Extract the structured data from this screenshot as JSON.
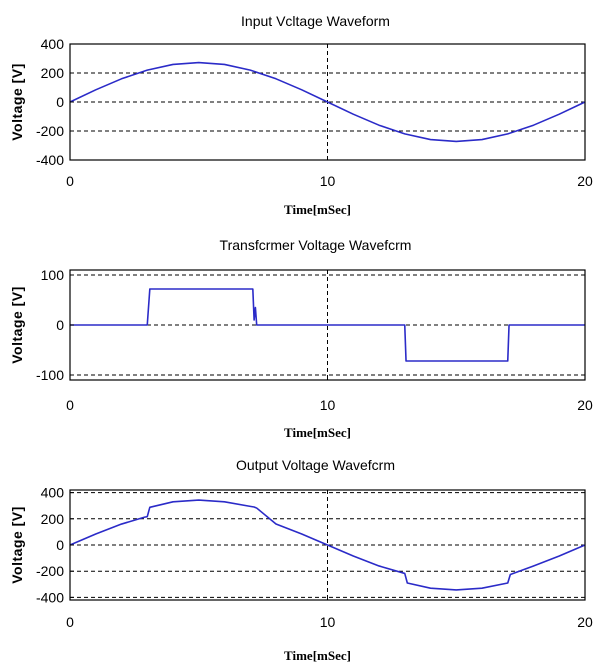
{
  "colors": {
    "line": "#2b2bc8",
    "axes": "#000000",
    "grid": "#000000",
    "background": "#ffffff"
  },
  "chart_data": [
    {
      "type": "line",
      "title": "Input Vcltage Waveform",
      "xlabel": "Time[mSec]",
      "ylabel": "Voltage [V]",
      "xlim": [
        0,
        20
      ],
      "ylim": [
        -400,
        400
      ],
      "xticks": [
        0,
        10,
        20
      ],
      "xtick_labels": [
        "0",
        "10",
        "20"
      ],
      "yticks": [
        400,
        200,
        0,
        -200,
        -400
      ],
      "ytick_labels": [
        "400",
        "200",
        "0",
        "-200",
        "-400"
      ],
      "grid": true,
      "series": [
        {
          "x": [
            0,
            1,
            2,
            3,
            4,
            5,
            6,
            7,
            8,
            9,
            10,
            11,
            12,
            13,
            14,
            15,
            16,
            17,
            18,
            19,
            20
          ],
          "y": [
            0,
            84,
            160,
            220,
            259,
            272,
            259,
            220,
            160,
            84,
            0,
            -84,
            -160,
            -220,
            -259,
            -272,
            -259,
            -220,
            -160,
            -84,
            0
          ]
        }
      ]
    },
    {
      "type": "line",
      "title": "Transfcrmer Voltage Wavefcrm",
      "xlabel": "Time[mSec]",
      "ylabel": "Voltage [V]",
      "xlim": [
        0,
        20
      ],
      "ylim": [
        -110,
        110
      ],
      "xticks": [
        0,
        10,
        20
      ],
      "xtick_labels": [
        "0",
        "10",
        "20"
      ],
      "yticks": [
        100,
        0,
        -100
      ],
      "ytick_labels": [
        "100",
        "0",
        "-100"
      ],
      "grid": true,
      "series": [
        {
          "x": [
            0,
            2.9,
            3.0,
            3.1,
            7.1,
            7.15,
            7.2,
            7.25,
            13.0,
            13.05,
            17.0,
            17.05,
            20
          ],
          "y": [
            0,
            0,
            0,
            72,
            72,
            10,
            35,
            0,
            0,
            -72,
            -72,
            0,
            0
          ]
        }
      ]
    },
    {
      "type": "line",
      "title": "Output Voltage Wavefcrm",
      "xlabel": "Time[mSec]",
      "ylabel": "Voltage [V]",
      "xlim": [
        0,
        20
      ],
      "ylim": [
        -420,
        420
      ],
      "xticks": [
        0,
        10,
        20
      ],
      "xtick_labels": [
        "0",
        "10",
        "20"
      ],
      "yticks": [
        400,
        200,
        0,
        -200,
        -400
      ],
      "ytick_labels": [
        "400",
        "200",
        "0",
        "-200",
        "-400"
      ],
      "grid": true,
      "series": [
        {
          "x": [
            0,
            1,
            2,
            2.9,
            3.0,
            3.1,
            4,
            5,
            6,
            7,
            7.15,
            7.25,
            8,
            9,
            10,
            11,
            12,
            13,
            13.1,
            14,
            15,
            16,
            17,
            17.1,
            18,
            19,
            20
          ],
          "y": [
            0,
            84,
            160,
            213,
            216,
            288,
            330,
            343,
            330,
            295,
            290,
            282,
            160,
            84,
            0,
            -84,
            -160,
            -217,
            -290,
            -330,
            -343,
            -330,
            -290,
            -225,
            -160,
            -84,
            0
          ]
        }
      ]
    }
  ]
}
